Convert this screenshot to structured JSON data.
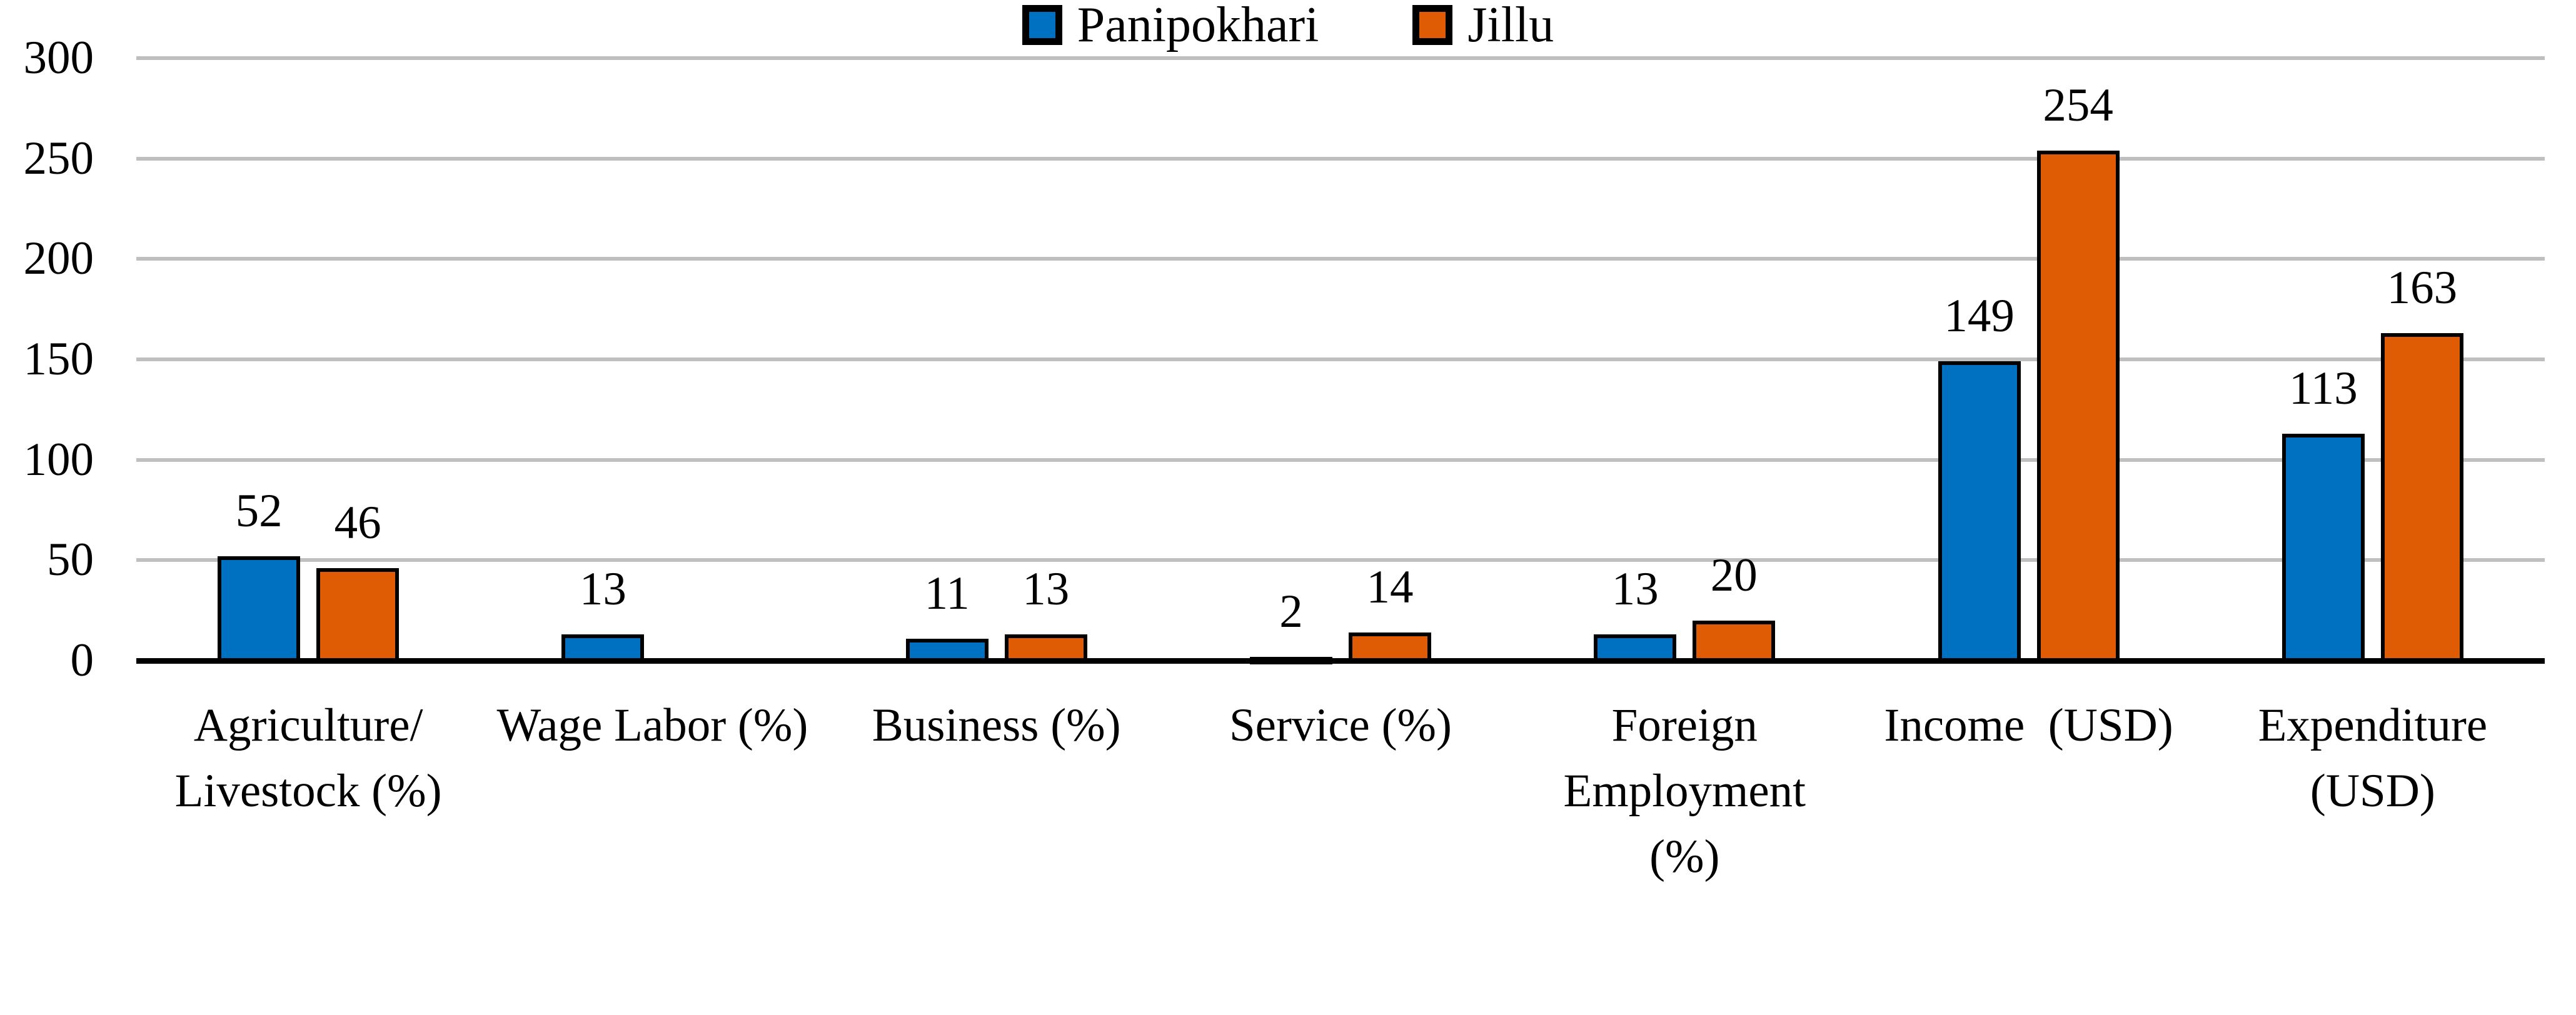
{
  "chart_data": {
    "type": "bar",
    "title": "",
    "xlabel": "",
    "ylabel": "",
    "categories": [
      "Agriculture/\nLivestock (%)",
      "Wage Labor (%)",
      "Business (%)",
      "Service (%)",
      "Foreign\nEmployment\n(%)",
      "Income  (USD)",
      "Expenditure\n(USD)"
    ],
    "series": [
      {
        "name": "Panipokhari",
        "color": "#0070C0",
        "values": [
          52,
          13,
          11,
          2,
          13,
          149,
          113
        ]
      },
      {
        "name": "Jillu",
        "color": "#E05C04",
        "values": [
          46,
          null,
          13,
          14,
          20,
          254,
          163
        ]
      }
    ],
    "data_labels_shown": true,
    "ylim": [
      0,
      300
    ],
    "yticks": [
      0,
      50,
      100,
      150,
      200,
      250,
      300
    ],
    "grid": "horizontal",
    "gridline_color": "#BFBFBF",
    "axis_color": "#000000",
    "bar_border_color": "#000000",
    "text_color": "#000000",
    "legend_position": "bottom"
  }
}
